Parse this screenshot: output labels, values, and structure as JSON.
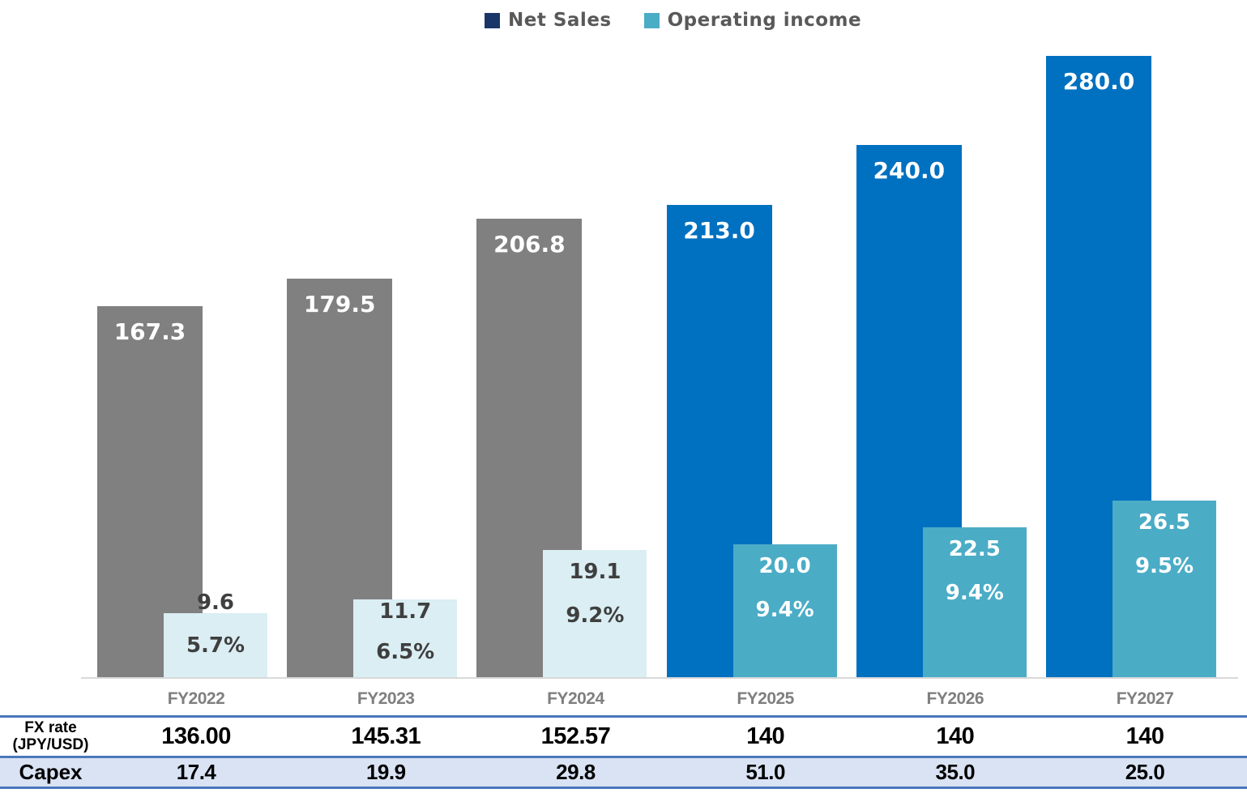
{
  "legend": {
    "items": [
      {
        "name": "net-sales",
        "label": "Net Sales",
        "swatch_color": "#1a3668"
      },
      {
        "name": "operating-income",
        "label": "Operating income",
        "swatch_color": "#4bacc6"
      }
    ]
  },
  "chart_data": {
    "type": "bar",
    "title": "",
    "categories": [
      "FY2022",
      "FY2023",
      "FY2024",
      "FY2025",
      "FY2026",
      "FY2027"
    ],
    "actual_flags": [
      true,
      true,
      true,
      false,
      false,
      false
    ],
    "series": [
      {
        "name": "Net Sales",
        "values": [
          167.3,
          179.5,
          206.8,
          213.0,
          240.0,
          280.0
        ],
        "value_labels": [
          "167.3",
          "179.5",
          "206.8",
          "213.0",
          "240.0",
          "280.0"
        ]
      },
      {
        "name": "Operating income",
        "values": [
          9.6,
          11.7,
          19.1,
          20.0,
          22.5,
          26.5
        ],
        "value_labels": [
          "9.6",
          "11.7",
          "19.1",
          "20.0",
          "22.5",
          "26.5"
        ],
        "margin_labels": [
          "5.7%",
          "6.5%",
          "9.2%",
          "9.4%",
          "9.4%",
          "9.5%"
        ]
      }
    ],
    "colors": {
      "net_sales_actual": "#808080",
      "net_sales_forecast": "#0070c0",
      "operating_income_actual": "#daeef3",
      "operating_income_forecast": "#4bacc6",
      "dark_label": "#3f3f3f",
      "light_label": "#ffffff"
    },
    "axes": {
      "value_axis_visible": false,
      "gridlines": false,
      "primary_axis_max": 280
    }
  },
  "table": {
    "rows": [
      {
        "label_line1": "FX rate",
        "label_line2": "(JPY/USD)",
        "values": [
          "136.00",
          "145.31",
          "152.57",
          "140",
          "140",
          "140"
        ]
      },
      {
        "label_line1": "Capex",
        "label_line2": "",
        "values": [
          "17.4",
          "19.9",
          "29.8",
          "51.0",
          "35.0",
          "25.0"
        ]
      }
    ]
  }
}
